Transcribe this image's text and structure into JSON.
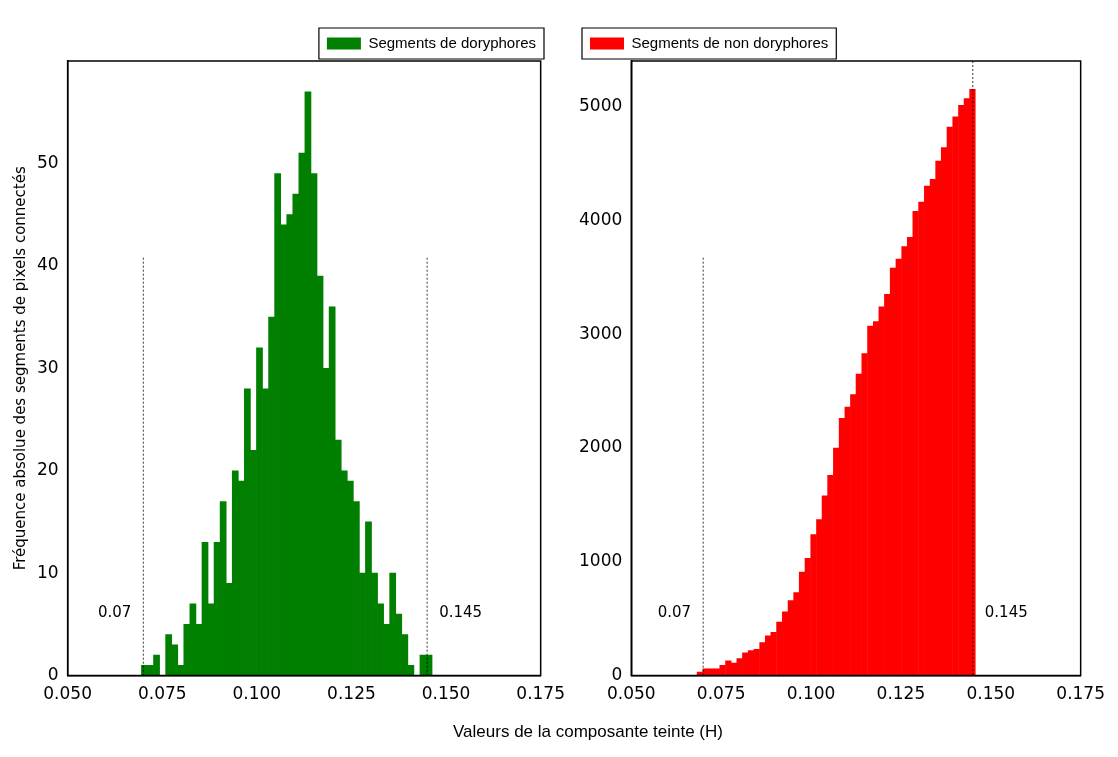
{
  "chart_data": [
    {
      "type": "histogram",
      "ylabel": "Fréquence absolue des segments de pixels connectés",
      "xlabel": "Valeurs de la composante teinte (H)",
      "bins": [
        0.0695,
        0.0711,
        0.0727,
        0.0743,
        0.0759,
        0.0775,
        0.0791,
        0.0807,
        0.0823,
        0.0839,
        0.0855,
        0.0871,
        0.0887,
        0.0903,
        0.0919,
        0.0935,
        0.0951,
        0.0967,
        0.0983,
        0.0999,
        0.1015,
        0.1031,
        0.1047,
        0.1063,
        0.1079,
        0.1095,
        0.1111,
        0.1127,
        0.1143,
        0.1159,
        0.1175,
        0.1191,
        0.1207,
        0.1223,
        0.1239,
        0.1255,
        0.1271,
        0.1287,
        0.1303,
        0.1319,
        0.1335,
        0.1351,
        0.1367,
        0.1383,
        0.1399,
        0.1415,
        0.1431,
        0.1447,
        0.1463
      ],
      "series": [
        {
          "name": "Segments de doryphores",
          "color": "#007f00",
          "values": [
            1,
            1,
            2,
            0,
            4,
            3,
            1,
            5,
            7,
            5,
            13,
            7,
            13,
            17,
            9,
            20,
            19,
            28,
            22,
            32,
            28,
            35,
            49,
            44,
            45,
            47,
            51,
            57,
            49,
            39,
            30,
            36,
            23,
            20,
            19,
            17,
            10,
            15,
            10,
            7,
            5,
            10,
            6,
            4,
            1,
            0,
            2,
            2
          ]
        }
      ],
      "xlim": [
        0.05,
        0.175
      ],
      "xticks": [
        {
          "value": 0.05,
          "label": "0.050"
        },
        {
          "value": 0.075,
          "label": "0.075"
        },
        {
          "value": 0.1,
          "label": "0.100"
        },
        {
          "value": 0.125,
          "label": "0.125"
        },
        {
          "value": 0.15,
          "label": "0.150"
        },
        {
          "value": 0.175,
          "label": "0.175"
        }
      ],
      "ylim": [
        0,
        60
      ],
      "yticks": [
        0,
        10,
        20,
        30,
        40,
        50
      ],
      "ref_lines": [
        {
          "axis": "x",
          "value": 0.07,
          "label": "0.07",
          "line_style": "dotted"
        },
        {
          "axis": "x",
          "value": 0.145,
          "label": "0.145",
          "line_style": "dotted"
        }
      ],
      "legend": "top right",
      "grid": false
    },
    {
      "type": "histogram",
      "bins": [
        0.0683,
        0.0699,
        0.0715,
        0.073,
        0.0746,
        0.0762,
        0.0778,
        0.0794,
        0.0809,
        0.0825,
        0.0841,
        0.0857,
        0.0873,
        0.0888,
        0.0904,
        0.092,
        0.0936,
        0.0952,
        0.0967,
        0.0983,
        0.0999,
        0.1015,
        0.1031,
        0.1046,
        0.1062,
        0.1078,
        0.1094,
        0.111,
        0.1125,
        0.1141,
        0.1157,
        0.1173,
        0.1189,
        0.1204,
        0.122,
        0.1236,
        0.1252,
        0.1268,
        0.1283,
        0.1299,
        0.1315,
        0.1331,
        0.1347,
        0.1362,
        0.1378,
        0.1394,
        0.141,
        0.1426,
        0.1441,
        0.1457
      ],
      "series": [
        {
          "name": "Segments de non doryphores",
          "color": "#ff0000",
          "values": [
            30,
            60,
            60,
            60,
            90,
            130,
            110,
            150,
            200,
            220,
            230,
            290,
            350,
            380,
            470,
            560,
            660,
            730,
            910,
            1030,
            1240,
            1370,
            1580,
            1760,
            2000,
            2260,
            2360,
            2470,
            2650,
            2830,
            3070,
            3110,
            3240,
            3350,
            3580,
            3660,
            3770,
            3850,
            4080,
            4160,
            4300,
            4360,
            4520,
            4640,
            4820,
            4910,
            5010,
            5070,
            5150
          ]
        }
      ],
      "xlim": [
        0.05,
        0.175
      ],
      "xticks": [
        {
          "value": 0.05,
          "label": "0.050"
        },
        {
          "value": 0.075,
          "label": "0.075"
        },
        {
          "value": 0.1,
          "label": "0.100"
        },
        {
          "value": 0.125,
          "label": "0.125"
        },
        {
          "value": 0.15,
          "label": "0.150"
        },
        {
          "value": 0.175,
          "label": "0.175"
        }
      ],
      "ylim": [
        0,
        5400
      ],
      "yticks": [
        0,
        1000,
        2000,
        3000,
        4000,
        5000
      ],
      "ref_lines": [
        {
          "axis": "x",
          "value": 0.07,
          "label": "0.07",
          "line_style": "dotted"
        },
        {
          "axis": "x",
          "value": 0.145,
          "label": "0.145",
          "line_style": "dotted"
        }
      ],
      "legend": "top left",
      "grid": false
    }
  ]
}
